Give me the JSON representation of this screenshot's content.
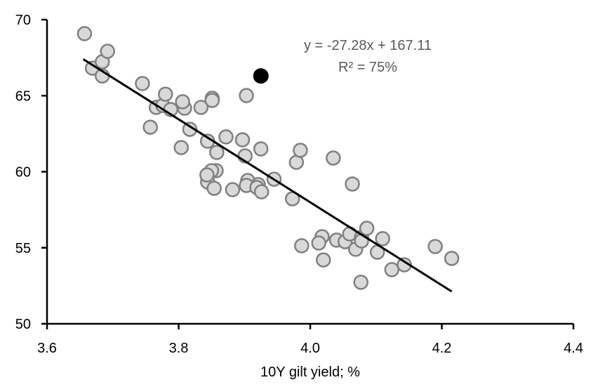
{
  "chart_data": {
    "type": "scatter",
    "title": "",
    "xlabel": "10Y gilt yield; %",
    "ylabel": "",
    "xlim": [
      3.6,
      4.4
    ],
    "ylim": [
      50,
      70
    ],
    "xticks": [
      "3.6",
      "3.8",
      "4.0",
      "4.2",
      "4.4"
    ],
    "yticks": [
      "50",
      "55",
      "60",
      "65",
      "70"
    ],
    "grid": false,
    "colors": {
      "point_fill": "#d9d9d9",
      "point_stroke": "#808080",
      "highlight": "#000000",
      "trendline": "#000000",
      "annotation": "#595959"
    },
    "points": [
      [
        3.657,
        69.08
      ],
      [
        3.669,
        66.81
      ],
      [
        3.684,
        67.23
      ],
      [
        3.692,
        67.92
      ],
      [
        3.684,
        66.3
      ],
      [
        3.745,
        65.8
      ],
      [
        3.757,
        62.93
      ],
      [
        3.766,
        64.23
      ],
      [
        3.776,
        64.36
      ],
      [
        3.78,
        65.1
      ],
      [
        3.788,
        64.09
      ],
      [
        3.809,
        64.18
      ],
      [
        3.806,
        64.6
      ],
      [
        3.804,
        61.59
      ],
      [
        3.817,
        62.79
      ],
      [
        3.834,
        64.23
      ],
      [
        3.851,
        64.83
      ],
      [
        3.851,
        64.69
      ],
      [
        3.844,
        62.01
      ],
      [
        3.858,
        61.27
      ],
      [
        3.857,
        60.07
      ],
      [
        3.85,
        60.07
      ],
      [
        3.844,
        59.33
      ],
      [
        3.843,
        59.79
      ],
      [
        3.854,
        58.91
      ],
      [
        3.872,
        62.29
      ],
      [
        3.882,
        58.82
      ],
      [
        3.897,
        62.1
      ],
      [
        3.901,
        61.04
      ],
      [
        3.903,
        65.01
      ],
      [
        3.925,
        61.5
      ],
      [
        3.905,
        59.42
      ],
      [
        3.903,
        59.1
      ],
      [
        3.921,
        59.15
      ],
      [
        3.919,
        58.96
      ],
      [
        3.926,
        58.68
      ],
      [
        3.945,
        59.51
      ],
      [
        3.973,
        58.22
      ],
      [
        3.979,
        60.62
      ],
      [
        3.985,
        61.41
      ],
      [
        3.987,
        55.13
      ],
      [
        4.018,
        55.73
      ],
      [
        4.013,
        55.31
      ],
      [
        4.02,
        54.2
      ],
      [
        4.035,
        60.9
      ],
      [
        4.04,
        55.5
      ],
      [
        4.053,
        55.4
      ],
      [
        4.06,
        55.91
      ],
      [
        4.064,
        59.19
      ],
      [
        4.069,
        54.9
      ],
      [
        4.078,
        55.68
      ],
      [
        4.078,
        55.45
      ],
      [
        4.086,
        56.28
      ],
      [
        4.077,
        52.73
      ],
      [
        4.11,
        55.6
      ],
      [
        4.102,
        54.71
      ],
      [
        4.124,
        53.56
      ],
      [
        4.143,
        53.88
      ],
      [
        4.19,
        55.08
      ],
      [
        4.215,
        54.3
      ]
    ],
    "highlight_point": [
      3.925,
      66.3
    ],
    "trendline": {
      "slope": -27.28,
      "intercept": 167.11,
      "x_range": [
        3.655,
        4.215
      ]
    },
    "annotations": {
      "equation": "y = -27.28x + 167.11",
      "r_squared": "R² = 75%"
    }
  }
}
